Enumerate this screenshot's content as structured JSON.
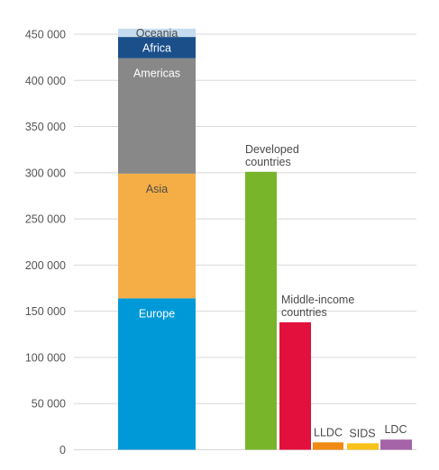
{
  "chart_data": {
    "type": "bar",
    "ylim": [
      0,
      460000
    ],
    "grid": true,
    "y_ticks": [
      {
        "value": 0,
        "label": "0"
      },
      {
        "value": 50000,
        "label": "50 000"
      },
      {
        "value": 100000,
        "label": "100 000"
      },
      {
        "value": 150000,
        "label": "150 000"
      },
      {
        "value": 200000,
        "label": "200 000"
      },
      {
        "value": 250000,
        "label": "250 000"
      },
      {
        "value": 300000,
        "label": "300 000"
      },
      {
        "value": 350000,
        "label": "350 000"
      },
      {
        "value": 400000,
        "label": "400 000"
      },
      {
        "value": 450000,
        "label": "450 000"
      }
    ],
    "stacked_bar": {
      "segments": [
        {
          "name": "Europe",
          "value": 164000,
          "color": "#0099d8",
          "label_color": "#ffffff"
        },
        {
          "name": "Asia",
          "value": 135000,
          "color": "#f5ae45",
          "label_color": "#4a4a4a"
        },
        {
          "name": "Americas",
          "value": 125000,
          "color": "#888888",
          "label_color": "#ffffff"
        },
        {
          "name": "Africa",
          "value": 23000,
          "color": "#1a4f8a",
          "label_color": "#ffffff"
        },
        {
          "name": "Oceania",
          "value": 9000,
          "color": "#c5dcf0",
          "label_color": "#4a4a4a"
        }
      ]
    },
    "bars": [
      {
        "name": "Developed countries",
        "label_lines": [
          "Developed",
          "countries"
        ],
        "value": 301000,
        "color": "#78b52b"
      },
      {
        "name": "Middle-income countries",
        "label_lines": [
          "Middle-income",
          "countries"
        ],
        "value": 138000,
        "color": "#e2103c"
      },
      {
        "name": "LLDC",
        "label_lines": [
          "LLDC"
        ],
        "value": 8000,
        "color": "#f08a12"
      },
      {
        "name": "SIDS",
        "label_lines": [
          "SIDS"
        ],
        "value": 7000,
        "color": "#f8c21a"
      },
      {
        "name": "LDC",
        "label_lines": [
          "LDC"
        ],
        "value": 11000,
        "color": "#a564a7"
      }
    ],
    "colors": {
      "grid": "#d8d8d8",
      "tick_text": "#555555",
      "bar_label_text": "#4a4a4a"
    }
  }
}
